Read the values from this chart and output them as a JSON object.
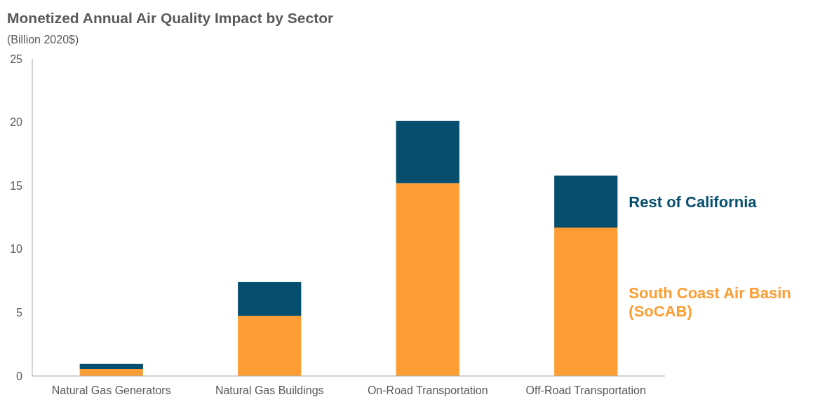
{
  "chart_data": {
    "type": "bar",
    "title": "Monetized Annual Air Quality Impact by Sector",
    "subtitle": "(Billion 2020$)",
    "categories": [
      "Natural Gas Generators",
      "Natural Gas Buildings",
      "On-Road Transportation",
      "Off-Road Transportation"
    ],
    "stacked": true,
    "series": [
      {
        "name": "South Coast Air Basin (SoCAB)",
        "color": "#fd9d33",
        "values": [
          0.55,
          4.75,
          15.2,
          11.7
        ]
      },
      {
        "name": "Rest of California",
        "color": "#054e6d",
        "values": [
          0.4,
          2.65,
          4.9,
          4.1
        ]
      }
    ],
    "ylim": [
      0,
      25
    ],
    "yticks": [
      0,
      5,
      10,
      15,
      20,
      25
    ],
    "grid": false,
    "legend": "right"
  }
}
